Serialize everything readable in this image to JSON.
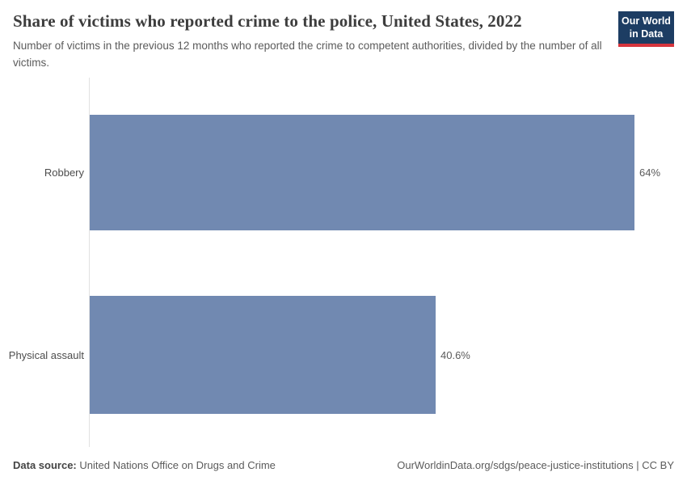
{
  "header": {
    "title": "Share of victims who reported crime to the police, United States, 2022",
    "subtitle": "Number of victims in the previous 12 months who reported the crime to competent authorities, divided by the number of all victims.",
    "logo": {
      "line1": "Our World",
      "line2": "in Data",
      "bg_color": "#1d3d63",
      "accent_color": "#d7353d"
    }
  },
  "chart_data": {
    "type": "bar",
    "orientation": "horizontal",
    "title": "Share of victims who reported crime to the police, United States, 2022",
    "categories": [
      "Robbery",
      "Physical assault"
    ],
    "values": [
      64,
      40.6
    ],
    "value_labels": [
      "64%",
      "40.6%"
    ],
    "xlim": [
      0,
      64
    ],
    "grid": false,
    "legend": "none",
    "bar_color": "#7189b1",
    "axis_line_color": "#e2e2e2"
  },
  "footer": {
    "source_label": "Data source:",
    "source_value": "United Nations Office on Drugs and Crime",
    "url_text": "OurWorldinData.org/sdgs/peace-justice-institutions | CC BY"
  }
}
